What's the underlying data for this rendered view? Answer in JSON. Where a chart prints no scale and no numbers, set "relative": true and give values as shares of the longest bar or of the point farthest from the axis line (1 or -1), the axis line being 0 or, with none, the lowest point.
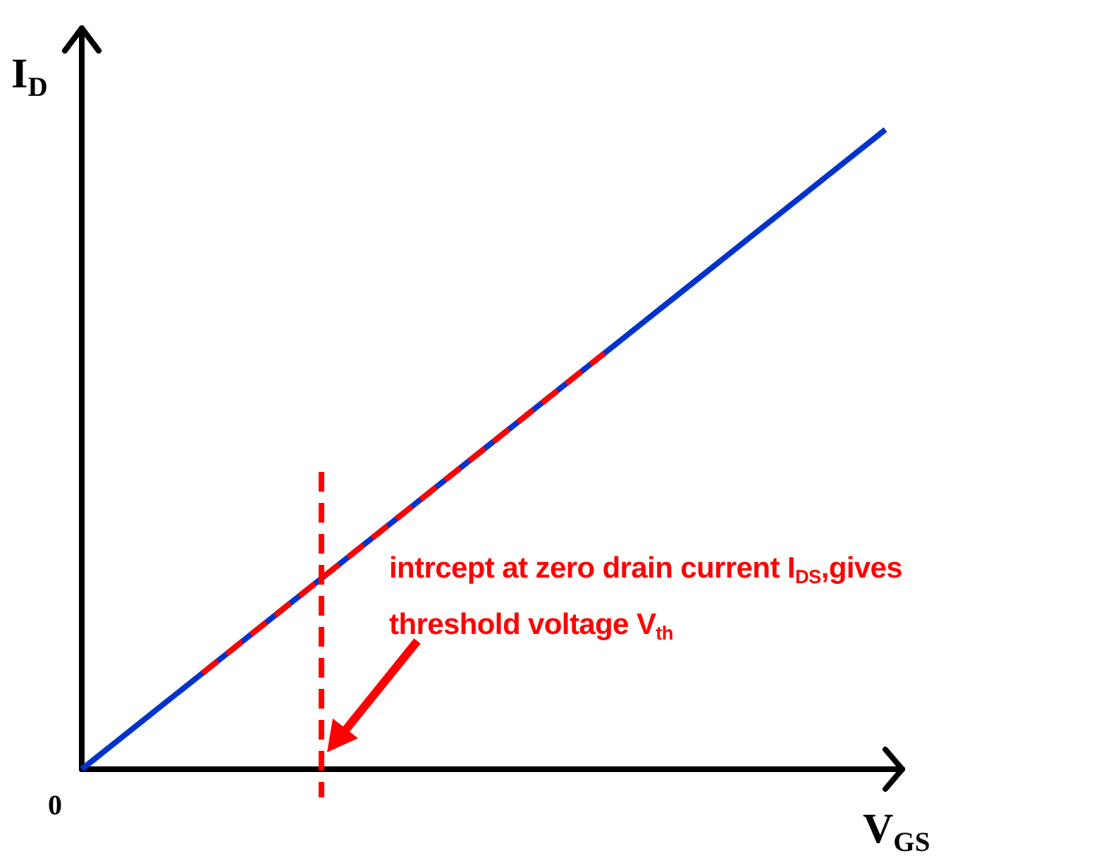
{
  "chart_data": {
    "type": "line",
    "relative": true,
    "xlabel": "V$_{GS}$",
    "ylabel": "I$_{D}$",
    "categories": [
      null,
      null,
      null,
      null,
      null,
      null,
      null,
      null,
      null,
      null,
      null,
      null,
      null,
      null,
      null,
      null,
      null,
      null,
      null,
      null,
      null
    ],
    "series": [
      {
        "color": "#0033cc",
        "line_style": "solid",
        "values": [
          0,
          0.05,
          0.1,
          0.15,
          0.2,
          0.25,
          0.3,
          0.35,
          0.4,
          0.45,
          0.5,
          0.55,
          0.6,
          0.65,
          0.7,
          0.75,
          0.8,
          0.85,
          0.9,
          0.95,
          1
        ]
      },
      {
        "color": "#ff0000",
        "line_style": "dashed",
        "values": [
          null,
          null,
          null,
          0.15,
          0.2,
          0.25,
          0.3,
          0.35,
          0.4,
          0.45,
          0.5,
          0.55,
          0.6,
          0.65,
          null,
          null,
          null,
          null,
          null,
          null,
          null
        ]
      }
    ],
    "annotations": [
      "0",
      "intrcept at zero drain current  I$_{DS}$,gives",
      "threshold voltage V$_{th}$"
    ]
  }
}
